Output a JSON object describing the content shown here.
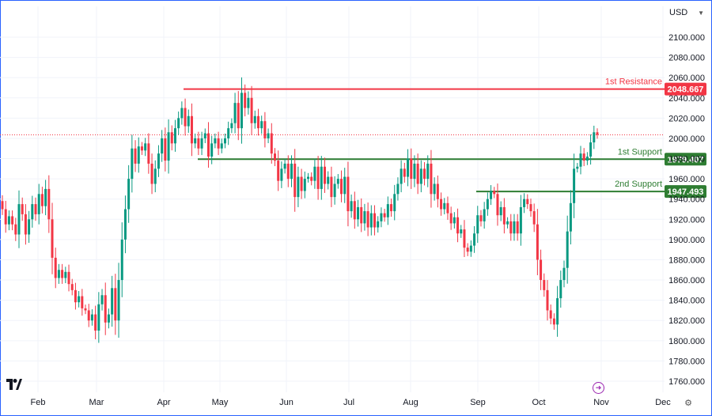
{
  "header": {
    "currency": "USD"
  },
  "colors": {
    "up": "#089981",
    "down": "#f23645",
    "resistance": "#f23645",
    "support": "#2e7d32",
    "grid": "#f0f3fa",
    "price_line": "#f23645"
  },
  "icons": {
    "logo": "tradingview-logo",
    "bolt": "bolt-icon",
    "settings": "gear-icon",
    "dropdown": "chevron-down-icon"
  },
  "chart_data": {
    "type": "candlestick",
    "y_ticks": [
      "2100.000",
      "2080.000",
      "2060.000",
      "2040.000",
      "2020.000",
      "2000.000",
      "1980.000",
      "1960.000",
      "1940.000",
      "1920.000",
      "1900.000",
      "1880.000",
      "1860.000",
      "1840.000",
      "1820.000",
      "1800.000",
      "1780.000",
      "1760.000"
    ],
    "x_ticks": [
      "Feb",
      "Mar",
      "Apr",
      "May",
      "Jun",
      "Jul",
      "Aug",
      "Sep",
      "Oct",
      "Nov",
      "Dec"
    ],
    "ylim": [
      1750,
      2120
    ],
    "current_price": 2003.5,
    "levels": [
      {
        "label": "1st Resistance",
        "value": "2048.667",
        "price": 2048.667,
        "kind": "resistance"
      },
      {
        "label": "1st Support",
        "value": "1979.407",
        "price": 1979.407,
        "kind": "support"
      },
      {
        "label": "2nd Support",
        "value": "1947.493",
        "price": 1947.493,
        "kind": "support"
      }
    ],
    "series": [
      {
        "values": [
          1930,
          1915,
          1923,
          1915,
          1905,
          1935,
          1925,
          1905,
          1920,
          1935,
          1925,
          1945,
          1933,
          1950,
          1920,
          1882,
          1862,
          1870,
          1862,
          1868,
          1856,
          1850,
          1838,
          1844,
          1832,
          1830,
          1820,
          1826,
          1810,
          1836,
          1845,
          1818,
          1826,
          1852,
          1820,
          1860,
          1900,
          1930,
          1960,
          1990,
          1975,
          1992,
          1988,
          1995,
          1975,
          1955,
          1970,
          1985,
          2000,
          1978,
          2006,
          1995,
          2010,
          2020,
          2030,
          2012,
          2022,
          1995,
          2000,
          1990,
          2000,
          2005,
          1982,
          1995,
          2000,
          1990,
          1995,
          2000,
          2010,
          2015,
          2035,
          2010,
          2045,
          2030,
          2040,
          2015,
          2022,
          2010,
          2017,
          2000,
          2005,
          1985,
          1978,
          1958,
          1970,
          1975,
          1960,
          1975,
          1942,
          1962,
          1948,
          1960,
          1962,
          1958,
          1972,
          1950,
          1972,
          1955,
          1962,
          1942,
          1955,
          1960,
          1945,
          1962,
          1928,
          1938,
          1920,
          1932,
          1916,
          1928,
          1912,
          1926,
          1912,
          1918,
          1926,
          1922,
          1935,
          1928,
          1945,
          1955,
          1970,
          1962,
          1980,
          1960,
          1975,
          1955,
          1970,
          1960,
          1975,
          1945,
          1955,
          1940,
          1930,
          1936,
          1926,
          1916,
          1922,
          1906,
          1910,
          1892,
          1888,
          1894,
          1906,
          1924,
          1918,
          1930,
          1940,
          1948,
          1945,
          1924,
          1932,
          1915,
          1918,
          1906,
          1918,
          1906,
          1932,
          1940,
          1935,
          1928,
          1915,
          1880,
          1860,
          1850,
          1830,
          1822,
          1816,
          1842,
          1860,
          1872,
          1908,
          1936,
          1970,
          1972,
          1985,
          1978,
          1982,
          1996,
          2006,
          2003.5
        ]
      }
    ]
  }
}
